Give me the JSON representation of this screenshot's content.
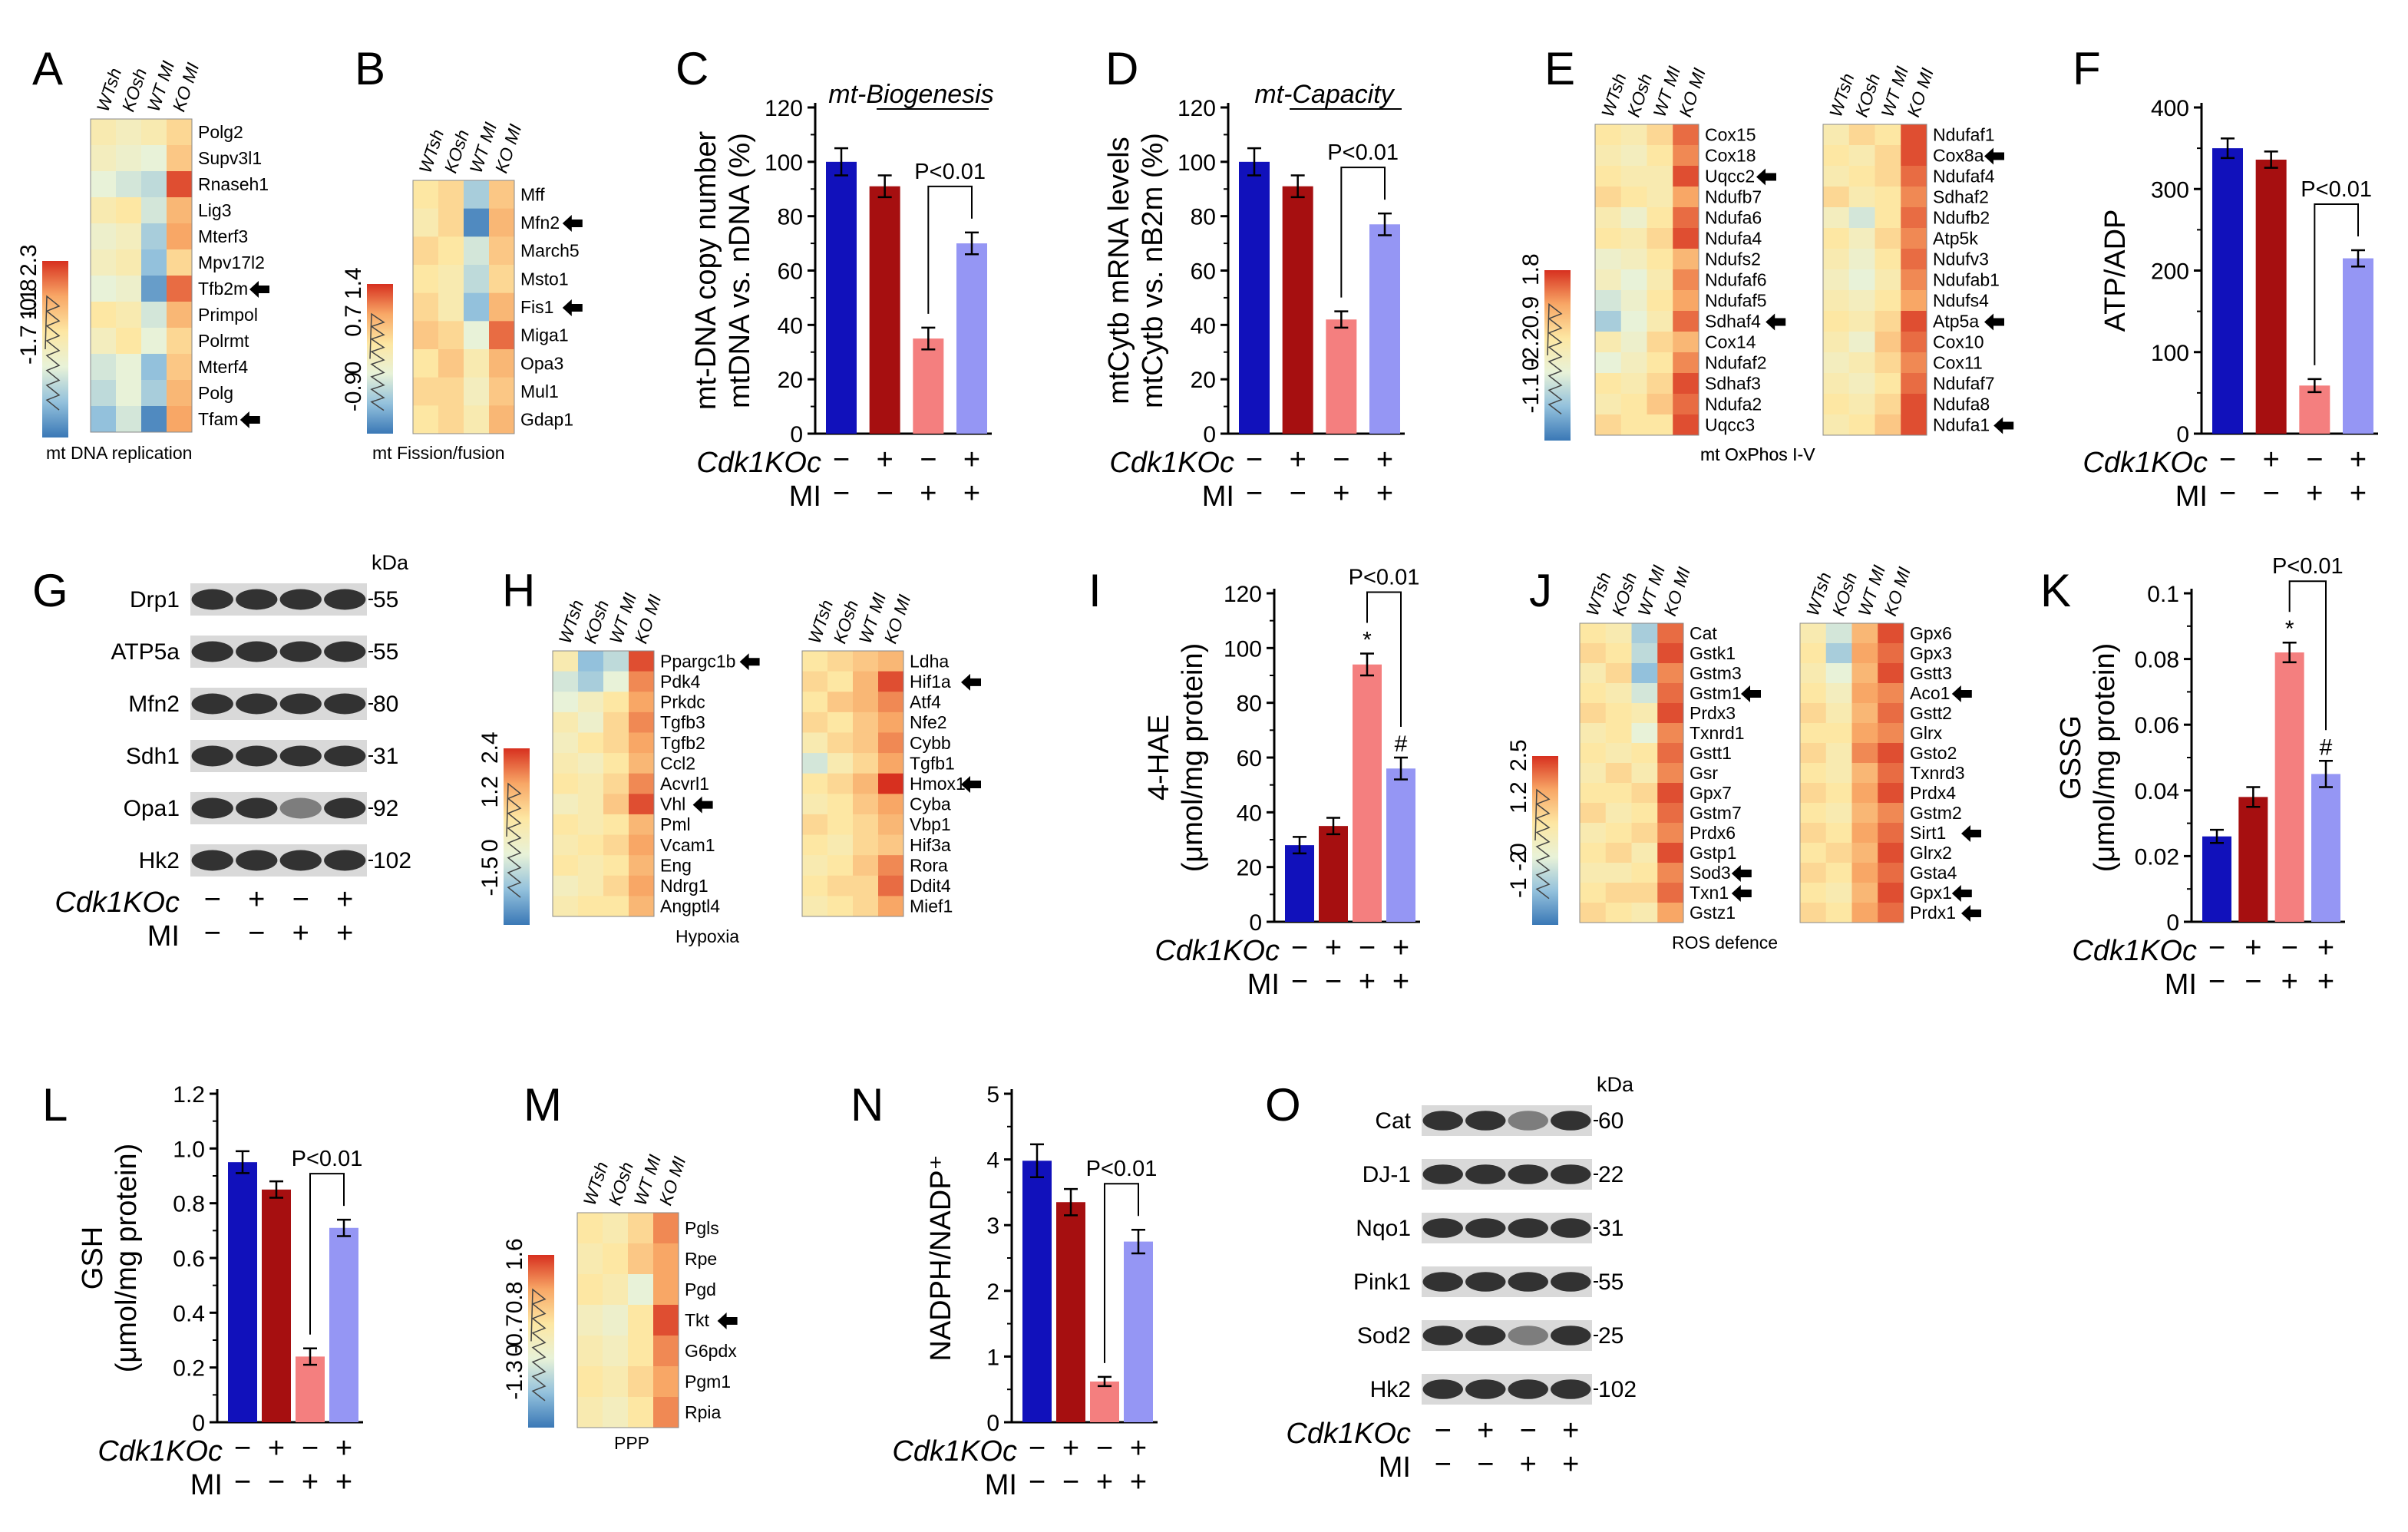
{
  "common": {
    "cdk_label": "Cdk1KOc",
    "mi_label": "MI",
    "cdk_signs": [
      "−",
      "+",
      "−",
      "+"
    ],
    "mi_signs": [
      "−",
      "−",
      "+",
      "+"
    ],
    "groups": [
      "WTsh",
      "KOsh",
      "WT MI",
      "KO MI"
    ],
    "bar_colors": [
      "#1111bb",
      "#a60f10",
      "#f47f7f",
      "#9596f4"
    ],
    "pval": "P<0.01",
    "kda": "kDa"
  },
  "heatmap_colors": [
    "#3a78b6",
    "#93c1dc",
    "#e8f2d8",
    "#fde7a3",
    "#f8a766",
    "#d7301f"
  ],
  "heatmaps": {
    "A": {
      "letter": "A",
      "title": "mt DNA replication",
      "genes": [
        "Polg2",
        "Supv3l1",
        "Rnaseh1",
        "Lig3",
        "Mterf3",
        "Mpv17l2",
        "Tfb2m",
        "Primpol",
        "Polrmt",
        "Mterf4",
        "Polg",
        "Tfam"
      ],
      "arrows": [
        6,
        11
      ],
      "scale": [
        "2.3",
        "1.1",
        "-1.7 -0.8",
        ""
      ],
      "values": [
        [
          0.1,
          0,
          0.1,
          0.3
        ],
        [
          0,
          -0.1,
          -0.2,
          0.4
        ],
        [
          -0.2,
          -0.3,
          -0.4,
          0.9
        ],
        [
          0.1,
          0.2,
          -0.3,
          0.5
        ],
        [
          -0.1,
          0,
          -0.5,
          0.6
        ],
        [
          0,
          0.1,
          -0.6,
          0.3
        ],
        [
          -0.2,
          -0.1,
          -0.8,
          0.8
        ],
        [
          0.2,
          0.1,
          -0.3,
          0.5
        ],
        [
          0,
          0.2,
          -0.2,
          0.3
        ],
        [
          -0.3,
          -0.2,
          -0.6,
          0.4
        ],
        [
          -0.4,
          -0.2,
          -0.5,
          0.5
        ],
        [
          -0.6,
          -0.3,
          -0.9,
          0.6
        ]
      ]
    },
    "B": {
      "letter": "B",
      "title": "mt Fission/fusion",
      "genes": [
        "Mff",
        "Mfn2",
        "March5",
        "Msto1",
        "Fis1",
        "Miga1",
        "Opa3",
        "Mul1",
        "Gdap1"
      ],
      "arrows": [
        1,
        4
      ],
      "scale": [
        "1.4",
        "0.7",
        "0",
        "-0.9"
      ],
      "values": [
        [
          0.2,
          0.3,
          -0.5,
          0.4
        ],
        [
          0.1,
          0.3,
          -0.9,
          0.5
        ],
        [
          0.3,
          0.2,
          -0.3,
          0.4
        ],
        [
          0.2,
          0.1,
          -0.4,
          0.3
        ],
        [
          0.3,
          0.1,
          -0.6,
          0.5
        ],
        [
          0.4,
          0.3,
          -0.2,
          0.8
        ],
        [
          0.2,
          0.4,
          0.1,
          0.5
        ],
        [
          0.3,
          0.3,
          0,
          0.4
        ],
        [
          0.2,
          0.3,
          0.1,
          0.5
        ]
      ]
    },
    "E1": {
      "letter": "E",
      "title": "",
      "genes": [
        "Cox15",
        "Cox18",
        "Uqcc2",
        "Ndufb7",
        "Ndufa6",
        "Ndufa4",
        "Ndufs2",
        "Ndufaf6",
        "Ndufaf5",
        "Sdhaf4",
        "Cox14",
        "Ndufaf2",
        "Sdhaf3",
        "Ndufa2",
        "Uqcc3"
      ],
      "arrows": [
        2,
        9
      ],
      "scale": [
        "1.8",
        "0.9",
        "0",
        "-1.1 -2.2"
      ],
      "values": [
        [
          0.2,
          0.1,
          0.3,
          0.8
        ],
        [
          0.1,
          0,
          0.2,
          0.7
        ],
        [
          0.2,
          0.1,
          0.1,
          0.9
        ],
        [
          0.3,
          0.2,
          0.1,
          0.6
        ],
        [
          0.1,
          -0.1,
          0.2,
          0.8
        ],
        [
          0.2,
          0.1,
          0.3,
          0.9
        ],
        [
          -0.1,
          0,
          0.2,
          0.5
        ],
        [
          0,
          -0.2,
          0.1,
          0.7
        ],
        [
          -0.3,
          -0.1,
          0.2,
          0.6
        ],
        [
          -0.5,
          -0.2,
          0.1,
          0.8
        ],
        [
          0.1,
          -0.1,
          0.3,
          0.5
        ],
        [
          -0.2,
          0,
          0.2,
          0.7
        ],
        [
          0.2,
          0.1,
          0.3,
          0.9
        ],
        [
          0.1,
          0.2,
          0.4,
          0.8
        ],
        [
          0.3,
          0.2,
          0.2,
          0.9
        ]
      ]
    },
    "E2": {
      "letter": "",
      "title": "mt OxPhos I-V",
      "genes": [
        "Ndufaf1",
        "Cox8a",
        "Ndufaf4",
        "Sdhaf2",
        "Ndufb2",
        "Atp5k",
        "Ndufv3",
        "Ndufab1",
        "Ndufs4",
        "Atp5a",
        "Cox10",
        "Cox11",
        "Ndufaf7",
        "Ndufa8",
        "Ndufa1"
      ],
      "arrows": [
        1,
        9,
        14
      ],
      "scale": [],
      "values": [
        [
          0.1,
          0.3,
          0.2,
          0.9
        ],
        [
          0.2,
          0.1,
          0.3,
          0.9
        ],
        [
          0.1,
          0.2,
          0.3,
          0.8
        ],
        [
          0.3,
          0.1,
          0.2,
          0.7
        ],
        [
          0,
          -0.3,
          0.2,
          0.8
        ],
        [
          0.2,
          0,
          0.3,
          0.7
        ],
        [
          0.1,
          -0.1,
          0.2,
          0.8
        ],
        [
          0,
          -0.2,
          0.1,
          0.7
        ],
        [
          0.1,
          0,
          0.2,
          0.6
        ],
        [
          0.2,
          0.1,
          0.3,
          0.9
        ],
        [
          0.1,
          -0.1,
          0.4,
          0.8
        ],
        [
          0,
          0.1,
          0.3,
          0.7
        ],
        [
          0.1,
          0,
          0.2,
          0.8
        ],
        [
          0.2,
          0.1,
          0.3,
          0.9
        ],
        [
          0.1,
          0.2,
          0.4,
          0.9
        ]
      ]
    },
    "H1": {
      "letter": "H",
      "title": "Hypoxia",
      "genes": [
        "Ppargc1b",
        "Pdk4",
        "Prkdc",
        "Tgfb3",
        "Tgfb2",
        "Ccl2",
        "Acvrl1",
        "Vhl",
        "Pml",
        "Vcam1",
        "Eng",
        "Ndrg1",
        "Angptl4"
      ],
      "arrows": [
        0,
        7
      ],
      "scale": [
        "2.4",
        "1.2",
        "0",
        "-1.5"
      ],
      "values": [
        [
          0.1,
          -0.6,
          -0.4,
          0.9
        ],
        [
          -0.3,
          -0.5,
          -0.2,
          0.7
        ],
        [
          -0.2,
          0,
          0.2,
          0.6
        ],
        [
          0.1,
          -0.1,
          0.3,
          0.7
        ],
        [
          0,
          0.2,
          0.3,
          0.6
        ],
        [
          0.1,
          0,
          0.2,
          0.5
        ],
        [
          0.2,
          0.1,
          0.3,
          0.7
        ],
        [
          0,
          0.1,
          0.4,
          0.9
        ],
        [
          0.2,
          0.1,
          0.2,
          0.5
        ],
        [
          0.1,
          0.2,
          0.3,
          0.6
        ],
        [
          0.2,
          0.1,
          0.2,
          0.5
        ],
        [
          0,
          0.1,
          0.3,
          0.6
        ],
        [
          0.1,
          0.2,
          0.2,
          0.5
        ]
      ]
    },
    "H2": {
      "letter": "",
      "title": "",
      "genes": [
        "Ldha",
        "Hif1a",
        "Atf4",
        "Nfe2",
        "Cybb",
        "Tgfb1",
        "Hmox1",
        "Cyba",
        "Vbp1",
        "Hif3a",
        "Rora",
        "Ddit4",
        "Mief1"
      ],
      "arrows": [
        1,
        6
      ],
      "scale": [],
      "values": [
        [
          0.2,
          0.3,
          0.4,
          0.5
        ],
        [
          0.3,
          0.2,
          0.5,
          0.9
        ],
        [
          0.2,
          0.4,
          0.5,
          0.7
        ],
        [
          0.3,
          0.2,
          0.4,
          0.6
        ],
        [
          0.1,
          0.3,
          0.4,
          0.7
        ],
        [
          -0.3,
          0.1,
          0.3,
          0.6
        ],
        [
          0.2,
          0.3,
          0.5,
          1
        ],
        [
          0.1,
          0.2,
          0.4,
          0.6
        ],
        [
          0.3,
          0.2,
          0.3,
          0.5
        ],
        [
          0.2,
          0.1,
          0.3,
          0.4
        ],
        [
          0.1,
          0.2,
          0.4,
          0.7
        ],
        [
          0.2,
          0.3,
          0.3,
          0.8
        ],
        [
          0.1,
          0.2,
          0.3,
          0.6
        ]
      ]
    },
    "J1": {
      "letter": "J",
      "title": "ROS defence",
      "genes": [
        "Cat",
        "Gstk1",
        "Gstm3",
        "Gstm1",
        "Prdx3",
        "Txnrd1",
        "Gstt1",
        "Gsr",
        "Gpx7",
        "Gstm7",
        "Prdx6",
        "Gstp1",
        "Sod3",
        "Txn1",
        "Gstz1"
      ],
      "arrows": [
        3,
        12,
        13
      ],
      "scale": [
        "2.5",
        "1.2",
        "0",
        "-1 -2"
      ],
      "values": [
        [
          0.2,
          0.1,
          -0.5,
          0.8
        ],
        [
          0.3,
          0.2,
          -0.4,
          0.9
        ],
        [
          0.1,
          0.3,
          -0.6,
          0.7
        ],
        [
          0.2,
          0.1,
          -0.3,
          0.8
        ],
        [
          0.3,
          0.2,
          0.1,
          0.9
        ],
        [
          0.1,
          0.2,
          -0.2,
          0.7
        ],
        [
          0.2,
          0.1,
          0.2,
          0.8
        ],
        [
          0.1,
          0.3,
          0.1,
          0.7
        ],
        [
          0.2,
          0.2,
          0.3,
          0.9
        ],
        [
          0.3,
          0.1,
          0.2,
          0.8
        ],
        [
          0.1,
          0.2,
          0.3,
          0.7
        ],
        [
          0.2,
          0.3,
          0.1,
          0.9
        ],
        [
          0.1,
          0.1,
          0.2,
          0.7
        ],
        [
          0.2,
          0.3,
          0.3,
          0.8
        ],
        [
          0.3,
          0.2,
          0.1,
          0.6
        ]
      ]
    },
    "J2": {
      "letter": "",
      "title": "",
      "genes": [
        "Gpx6",
        "Gpx3",
        "Gstt3",
        "Aco1",
        "Gstt2",
        "Glrx",
        "Gsto2",
        "Txnrd3",
        "Prdx4",
        "Gstm2",
        "Sirt1",
        "Glrx2",
        "Gsta4",
        "Gpx1",
        "Prdx1"
      ],
      "arrows": [
        3,
        10,
        13,
        14
      ],
      "scale": [],
      "values": [
        [
          0.1,
          -0.3,
          0.5,
          0.9
        ],
        [
          0.2,
          -0.5,
          0.6,
          0.8
        ],
        [
          0.1,
          -0.2,
          0.5,
          0.9
        ],
        [
          0.2,
          0,
          0.6,
          0.7
        ],
        [
          0.3,
          0.1,
          0.5,
          0.8
        ],
        [
          0.2,
          0.2,
          0.6,
          0.7
        ],
        [
          0.3,
          0.1,
          0.7,
          0.9
        ],
        [
          0.2,
          0.1,
          0.5,
          0.8
        ],
        [
          0.3,
          0.2,
          0.6,
          0.9
        ],
        [
          0.2,
          0.1,
          0.5,
          0.7
        ],
        [
          0.3,
          0.2,
          0.6,
          0.8
        ],
        [
          0.2,
          0.3,
          0.5,
          0.9
        ],
        [
          0.3,
          0.2,
          0.6,
          0.8
        ],
        [
          0.2,
          0.1,
          0.5,
          0.9
        ],
        [
          0.3,
          0.2,
          0.6,
          0.8
        ]
      ]
    },
    "M": {
      "letter": "M",
      "title": "PPP",
      "genes": [
        "Pgls",
        "Rpe",
        "Pgd",
        "Tkt",
        "G6pdx",
        "Pgm1",
        "Rpia"
      ],
      "arrows": [
        3
      ],
      "scale": [
        "1.6",
        "0.8",
        "0",
        "-1.3 -0.7"
      ],
      "values": [
        [
          0.2,
          0.1,
          0.3,
          0.7
        ],
        [
          0.1,
          0.2,
          0.4,
          0.6
        ],
        [
          0.2,
          0.1,
          -0.2,
          0.6
        ],
        [
          0,
          -0.1,
          0.2,
          0.9
        ],
        [
          0.1,
          0,
          0.2,
          0.7
        ],
        [
          0.2,
          0.1,
          0.3,
          0.6
        ],
        [
          0.1,
          0,
          0.2,
          0.7
        ]
      ]
    }
  },
  "chart_data": [
    {
      "id": "C",
      "type": "bar",
      "letter": "C",
      "title": "mt-Biogenesis",
      "ylabel": "mt-DNA copy number",
      "ylabel2": "mtDNA vs. nDNA (%)",
      "ylim": [
        0,
        120
      ],
      "ticks": [
        "0",
        "20",
        "40",
        "60",
        "80",
        "100",
        "120"
      ],
      "values": [
        100,
        91,
        35,
        70
      ],
      "errors": [
        5,
        4,
        4,
        4
      ],
      "bracket": [
        2,
        3
      ],
      "annotations": []
    },
    {
      "id": "D",
      "type": "bar",
      "letter": "D",
      "title": "mt-Capacity",
      "ylabel": "mtCytb mRNA levels",
      "ylabel2": "mtCytb vs. nB2m (%)",
      "ylim": [
        0,
        120
      ],
      "ticks": [
        "0",
        "20",
        "40",
        "60",
        "80",
        "100",
        "120"
      ],
      "values": [
        100,
        91,
        42,
        77
      ],
      "errors": [
        5,
        4,
        3,
        4
      ],
      "bracket": [
        2,
        3
      ],
      "annotations": []
    },
    {
      "id": "F",
      "type": "bar",
      "letter": "F",
      "title": "",
      "ylabel": "ATP/ADP",
      "ylabel2": "",
      "ylim": [
        0,
        400
      ],
      "ticks": [
        "0",
        "100",
        "200",
        "300",
        "400"
      ],
      "values": [
        350,
        336,
        59,
        215
      ],
      "errors": [
        12,
        10,
        8,
        10
      ],
      "bracket": [
        2,
        3
      ],
      "annotations": []
    },
    {
      "id": "I",
      "type": "bar",
      "letter": "I",
      "title": "",
      "ylabel": "4-HAE",
      "ylabel2": "(μmol/mg protein)",
      "ylim": [
        0,
        120
      ],
      "ticks": [
        "0",
        "20",
        "40",
        "60",
        "80",
        "100",
        "120"
      ],
      "values": [
        28,
        35,
        94,
        56
      ],
      "errors": [
        3,
        3,
        4,
        4
      ],
      "bracket": [
        2,
        3
      ],
      "annotations": [
        "",
        "",
        "*",
        "#"
      ]
    },
    {
      "id": "K",
      "type": "bar",
      "letter": "K",
      "title": "",
      "ylabel": "GSSG",
      "ylabel2": "(μmol/mg protein)",
      "ylim": [
        0,
        0.1
      ],
      "ticks": [
        "0",
        "0.02",
        "0.04",
        "0.06",
        "0.08",
        "0.1"
      ],
      "values": [
        0.026,
        0.038,
        0.082,
        0.045
      ],
      "errors": [
        0.002,
        0.003,
        0.003,
        0.004
      ],
      "bracket": [
        2,
        3
      ],
      "annotations": [
        "",
        "",
        "*",
        "#"
      ]
    },
    {
      "id": "L",
      "type": "bar",
      "letter": "L",
      "title": "",
      "ylabel": "GSH",
      "ylabel2": "(μmol/mg protein)",
      "ylim": [
        0,
        1.2
      ],
      "ticks": [
        "0",
        "0.2",
        "0.4",
        "0.6",
        "0.8",
        "1.0",
        "1.2"
      ],
      "values": [
        0.95,
        0.85,
        0.24,
        0.71
      ],
      "errors": [
        0.04,
        0.03,
        0.03,
        0.03
      ],
      "bracket": [
        2,
        3
      ],
      "annotations": []
    },
    {
      "id": "N",
      "type": "bar",
      "letter": "N",
      "title": "",
      "ylabel": "NADPH/NADP⁺",
      "ylabel2": "",
      "ylim": [
        0,
        5
      ],
      "ticks": [
        "0",
        "1",
        "2",
        "3",
        "4",
        "5"
      ],
      "values": [
        3.98,
        3.35,
        0.62,
        2.75
      ],
      "errors": [
        0.25,
        0.2,
        0.07,
        0.18
      ],
      "bracket": [
        2,
        3
      ],
      "annotations": []
    }
  ],
  "blots": {
    "G": {
      "letter": "G",
      "proteins": [
        "Drp1",
        "ATP5a",
        "Mfn2",
        "Sdh1",
        "Opa1",
        "Hk2"
      ],
      "kda": [
        "55",
        "55",
        "80",
        "31",
        "92",
        "102"
      ]
    },
    "O": {
      "letter": "O",
      "proteins": [
        "Cat",
        "DJ-1",
        "Nqo1",
        "Pink1",
        "Sod2",
        "Hk2"
      ],
      "kda": [
        "60",
        "22",
        "31",
        "55",
        "25",
        "102"
      ]
    }
  }
}
